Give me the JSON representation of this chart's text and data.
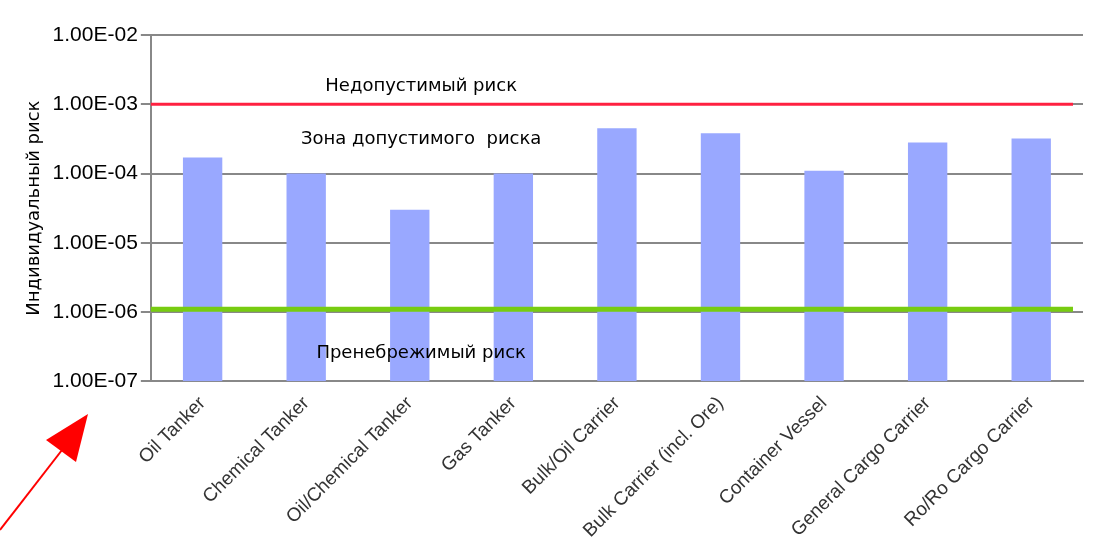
{
  "chart_data": {
    "type": "bar",
    "ylabel": "Индивидуальный риск",
    "categories": [
      "Oil Tanker",
      "Chemical Tanker",
      "Oil/Chemical Tanker",
      "Gas Tanker",
      "Bulk/Oil Carrier",
      "Bulk Carrier (incl. Ore)",
      "Container Vessel",
      "General Cargo Carrier",
      "Ro/Ro Cargo Carrier"
    ],
    "values": [
      0.00017,
      0.0001,
      3e-05,
      0.0001,
      0.00045,
      0.00038,
      0.00011,
      0.00028,
      0.00032
    ],
    "color": "#99a8ff",
    "log": "y",
    "ylim": [
      1e-07,
      0.01
    ],
    "yticks": [
      {
        "value": 1e-07,
        "label": "1.00E-07"
      },
      {
        "value": 1e-06,
        "label": "1.00E-06"
      },
      {
        "value": 1e-05,
        "label": "1.00E-05"
      },
      {
        "value": 0.0001,
        "label": "1.00E-04"
      },
      {
        "value": 0.001,
        "label": "1.00E-03"
      },
      {
        "value": 0.01,
        "label": "1.00E-02"
      }
    ],
    "grid": "y",
    "legend": false,
    "ref_lines": [
      {
        "axis": "y",
        "value": 0.001,
        "label": "Недопустимый риск",
        "color": "#ff2040"
      },
      {
        "axis": "y",
        "value": 1.1e-06,
        "label": "Пренебрежимый риск",
        "color": "#77cc11"
      }
    ],
    "annotations": [
      "Зона допустимого  риска"
    ]
  }
}
